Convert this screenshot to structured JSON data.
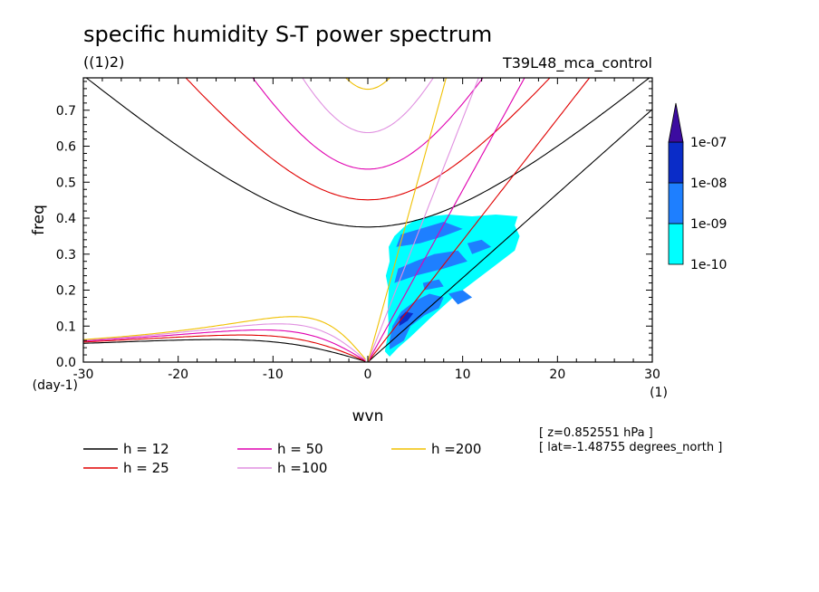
{
  "chart_data": {
    "type": "heatmap",
    "title": "specific humidity S-T power spectrum",
    "subtitle": "((1)2)",
    "experiment": "T39L48_mca_control",
    "xlabel": "wvn",
    "ylabel": "freq",
    "xunit": "(1)",
    "yunit": "(day-1)",
    "xlim": [
      -30,
      30
    ],
    "ylim": [
      0.0,
      0.79
    ],
    "xticks": [
      -30,
      -20,
      -10,
      0,
      10,
      20,
      30
    ],
    "xtick_labels": [
      "-30",
      "-20",
      "-10",
      "0",
      "10",
      "20",
      "30"
    ],
    "yticks": [
      0.0,
      0.1,
      0.2,
      0.3,
      0.4,
      0.5,
      0.6,
      0.7
    ],
    "ytick_labels": [
      "0.0",
      "0.1",
      "0.2",
      "0.3",
      "0.4",
      "0.5",
      "0.6",
      "0.7"
    ],
    "colorbar": {
      "labels": [
        "1e-10",
        "1e-09",
        "1e-08",
        "1e-07"
      ],
      "colors": [
        "#00ffff",
        "#1e7fff",
        "#0a2cc8",
        "#3c0ca0"
      ]
    },
    "contours": [
      {
        "name": "1e-10 level",
        "color": "#00ffff",
        "polygons": [
          [
            [
              1.8,
              0.03
            ],
            [
              2.3,
              0.015
            ],
            [
              3.2,
              0.04
            ],
            [
              4.5,
              0.07
            ],
            [
              6.5,
              0.12
            ],
            [
              9.0,
              0.18
            ],
            [
              11.5,
              0.23
            ],
            [
              13.5,
              0.27
            ],
            [
              15.5,
              0.31
            ],
            [
              16.0,
              0.35
            ],
            [
              15.5,
              0.38
            ],
            [
              15.8,
              0.405
            ],
            [
              13.5,
              0.41
            ],
            [
              11.0,
              0.405
            ],
            [
              8.5,
              0.41
            ],
            [
              6.5,
              0.405
            ],
            [
              5.0,
              0.395
            ],
            [
              3.8,
              0.375
            ],
            [
              2.8,
              0.35
            ],
            [
              2.2,
              0.32
            ],
            [
              2.3,
              0.28
            ],
            [
              1.9,
              0.24
            ],
            [
              2.2,
              0.2
            ],
            [
              2.1,
              0.15
            ],
            [
              2.2,
              0.1
            ],
            [
              2.0,
              0.06
            ]
          ]
        ]
      },
      {
        "name": "1e-09 level",
        "color": "#1e7fff",
        "polygons": [
          [
            [
              2.3,
              0.035
            ],
            [
              3.8,
              0.06
            ],
            [
              4.5,
              0.1
            ],
            [
              6.0,
              0.13
            ],
            [
              7.5,
              0.15
            ],
            [
              8.0,
              0.18
            ],
            [
              6.5,
              0.19
            ],
            [
              5.0,
              0.17
            ],
            [
              3.5,
              0.14
            ],
            [
              2.6,
              0.1
            ],
            [
              2.3,
              0.06
            ]
          ],
          [
            [
              2.8,
              0.22
            ],
            [
              5.0,
              0.24
            ],
            [
              8.0,
              0.26
            ],
            [
              10.5,
              0.28
            ],
            [
              9.5,
              0.31
            ],
            [
              7.0,
              0.3
            ],
            [
              5.0,
              0.28
            ],
            [
              3.2,
              0.26
            ]
          ],
          [
            [
              3.0,
              0.32
            ],
            [
              5.5,
              0.33
            ],
            [
              8.0,
              0.35
            ],
            [
              10.0,
              0.37
            ],
            [
              8.0,
              0.39
            ],
            [
              5.5,
              0.37
            ],
            [
              3.5,
              0.355
            ]
          ],
          [
            [
              9.5,
              0.16
            ],
            [
              11.0,
              0.18
            ],
            [
              10.0,
              0.2
            ],
            [
              8.5,
              0.19
            ]
          ],
          [
            [
              11.0,
              0.3
            ],
            [
              13.0,
              0.32
            ],
            [
              12.0,
              0.34
            ],
            [
              10.5,
              0.33
            ]
          ],
          [
            [
              6.0,
              0.2
            ],
            [
              8.0,
              0.21
            ],
            [
              7.5,
              0.23
            ],
            [
              5.8,
              0.22
            ]
          ]
        ]
      },
      {
        "name": "1e-08 level",
        "color": "#0a2cc8",
        "polygons": [
          [
            [
              3.3,
              0.1
            ],
            [
              4.2,
              0.115
            ],
            [
              4.8,
              0.135
            ],
            [
              4.0,
              0.14
            ],
            [
              3.4,
              0.125
            ]
          ]
        ]
      }
    ],
    "dispersion_series": [
      {
        "name": "h = 12",
        "color": "#000000",
        "h": 12
      },
      {
        "name": "h = 25",
        "color": "#e00000",
        "h": 25
      },
      {
        "name": "h = 50",
        "color": "#e000b0",
        "h": 50
      },
      {
        "name": "h =100",
        "color": "#e090e0",
        "h": 100
      },
      {
        "name": "h =200",
        "color": "#f0c000",
        "h": 200
      }
    ],
    "legend_position": "bottom"
  },
  "info": {
    "level": "[ z=0.852551 hPa ]",
    "latitude": "[ lat=-1.48755 degrees_north ]"
  }
}
